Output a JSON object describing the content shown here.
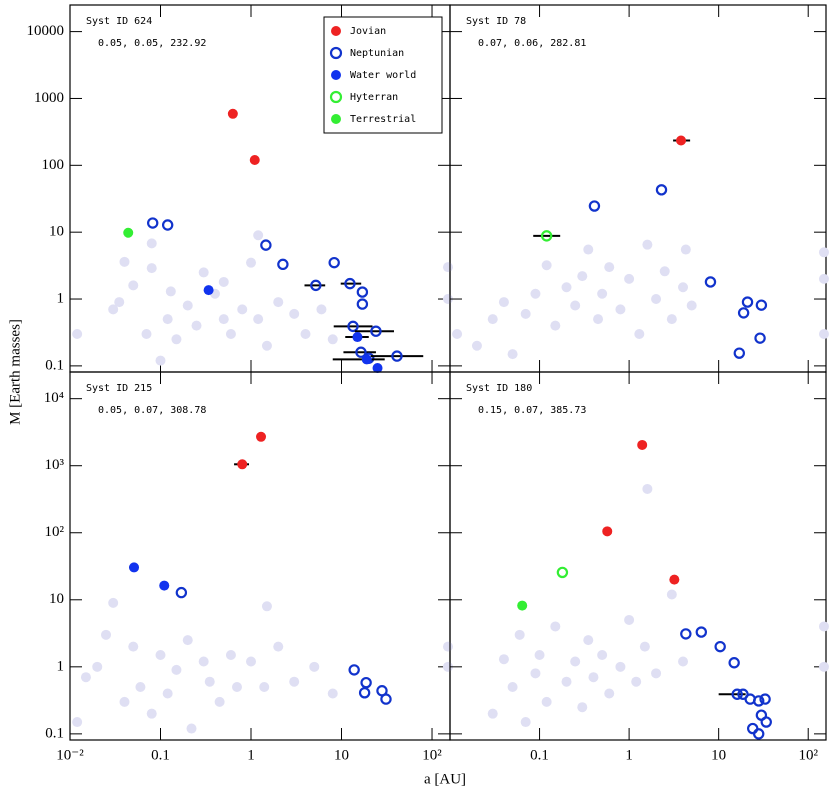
{
  "x_label": "a [AU]",
  "y_label": "M [Earth masses]",
  "chart_data": [
    {
      "type": "scatter",
      "title": "Syst ID 624",
      "subtitle": "0.05, 0.05, 232.92",
      "log_x": true,
      "log_y": true,
      "xlim": [
        0.01,
        158
      ],
      "ylim": [
        0.081,
        25000
      ],
      "xticks": [
        0.01,
        0.1,
        1,
        10,
        100
      ],
      "yticks": [
        0.1,
        1,
        10,
        100,
        1000,
        10000
      ],
      "xtick_labels": false,
      "ytick_labels": true,
      "legend": "upper right",
      "series": [
        {
          "color": "#dfdff3",
          "filled": true,
          "x": [
            0.012,
            0.03,
            0.035,
            0.04,
            0.05,
            0.07,
            0.08,
            0.08,
            0.1,
            0.12,
            0.13,
            0.15,
            0.2,
            0.25,
            0.3,
            0.4,
            0.5,
            0.5,
            0.6,
            0.8,
            1,
            1.2,
            1.2,
            1.5,
            2,
            3,
            4,
            6,
            8,
            150,
            150
          ],
          "values": [
            0.3,
            0.7,
            0.9,
            3.6,
            1.6,
            0.3,
            6.8,
            2.9,
            0.12,
            0.5,
            1.3,
            0.25,
            0.8,
            0.4,
            2.5,
            1.2,
            0.5,
            1.8,
            0.3,
            0.7,
            3.5,
            0.5,
            9,
            0.2,
            0.9,
            0.6,
            0.3,
            0.7,
            0.25,
            3,
            1
          ]
        },
        {
          "name": "Jovian",
          "color": "#ee2222",
          "filled": true,
          "x": [
            0.63,
            1.1
          ],
          "values": [
            590,
            120
          ]
        },
        {
          "name": "Neptunian",
          "color": "#1133cc",
          "filled": false,
          "x": [
            0.082,
            0.12,
            1.46,
            2.25,
            5.2,
            8.3,
            12.4,
            17,
            17,
            13.4,
            24,
            16.4,
            20,
            41
          ],
          "values": [
            13.7,
            12.8,
            6.4,
            3.3,
            1.6,
            3.5,
            1.7,
            1.27,
            0.84,
            0.39,
            0.33,
            0.16,
            0.13,
            0.14
          ],
          "x_low": [
            null,
            null,
            null,
            null,
            3.9,
            null,
            9.8,
            null,
            null,
            8.2,
            14,
            10.5,
            null,
            21
          ],
          "x_high": [
            null,
            null,
            null,
            null,
            6.6,
            null,
            16.5,
            null,
            null,
            22,
            38,
            24,
            null,
            80
          ]
        },
        {
          "name": "Water world",
          "color": "#1133ee",
          "filled": true,
          "x": [
            0.34,
            15,
            19,
            25
          ],
          "values": [
            1.36,
            0.27,
            0.125,
            0.093
          ],
          "x_low": [
            null,
            11,
            8,
            null
          ],
          "x_high": [
            null,
            20,
            30,
            null
          ]
        },
        {
          "name": "Hyterran",
          "color": "#33ee33",
          "filled": false,
          "x": [],
          "values": []
        },
        {
          "name": "Terrestrial",
          "color": "#33ee33",
          "filled": true,
          "x": [
            0.044
          ],
          "values": [
            9.8
          ]
        }
      ]
    },
    {
      "type": "scatter",
      "title": "Syst ID 78",
      "subtitle": "0.07, 0.06, 282.81",
      "log_x": true,
      "log_y": true,
      "xlim": [
        0.01,
        158
      ],
      "ylim": [
        0.081,
        25000
      ],
      "xticks": [
        0.01,
        0.1,
        1,
        10,
        100
      ],
      "yticks": [
        0.1,
        1,
        10,
        100,
        1000,
        10000
      ],
      "xtick_labels": false,
      "ytick_labels": false,
      "series": [
        {
          "color": "#dfdff3",
          "filled": true,
          "x": [
            0.012,
            0.02,
            0.03,
            0.04,
            0.05,
            0.07,
            0.09,
            0.12,
            0.15,
            0.2,
            0.25,
            0.3,
            0.35,
            0.45,
            0.5,
            0.6,
            0.8,
            1,
            1.3,
            1.6,
            2,
            2.5,
            3,
            4,
            4.3,
            5,
            150,
            150,
            150
          ],
          "values": [
            0.3,
            0.2,
            0.5,
            0.9,
            0.15,
            0.6,
            1.2,
            3.2,
            0.4,
            1.5,
            0.8,
            2.2,
            5.5,
            0.5,
            1.2,
            3,
            0.7,
            2,
            0.3,
            6.5,
            1,
            2.6,
            0.5,
            1.5,
            5.5,
            0.8,
            5,
            2,
            0.3
          ]
        },
        {
          "color": "#ee2222",
          "filled": true,
          "x": [
            3.8
          ],
          "values": [
            235
          ],
          "x_low": [
            3.1
          ],
          "x_high": [
            4.8
          ]
        },
        {
          "color": "#1133cc",
          "filled": false,
          "x": [
            0.41,
            2.3,
            8.1,
            21,
            19,
            30,
            17,
            29
          ],
          "values": [
            24.6,
            43,
            1.8,
            0.9,
            0.62,
            0.81,
            0.155,
            0.26
          ]
        },
        {
          "color": "#33ee33",
          "filled": false,
          "x": [
            0.12
          ],
          "values": [
            8.8
          ],
          "x_low": [
            0.085
          ],
          "x_high": [
            0.17
          ]
        }
      ]
    },
    {
      "type": "scatter",
      "title": "Syst ID 215",
      "subtitle": "0.05, 0.07, 308.78",
      "log_x": true,
      "log_y": true,
      "xlim": [
        0.01,
        158
      ],
      "ylim": [
        0.081,
        25000
      ],
      "xticks": [
        {
          "value": 0.01,
          "label": "10⁻²"
        },
        0.1,
        1,
        10,
        {
          "value": 100,
          "label": "10²"
        }
      ],
      "yticks": [
        0.1,
        1,
        10,
        {
          "value": 100,
          "label": "10²"
        },
        {
          "value": 1000,
          "label": "10³"
        },
        {
          "value": 10000,
          "label": "10⁴"
        }
      ],
      "xtick_labels": true,
      "ytick_labels": true,
      "series": [
        {
          "color": "#dfdff3",
          "filled": true,
          "x": [
            0.012,
            0.015,
            0.02,
            0.025,
            0.03,
            0.04,
            0.05,
            0.06,
            0.08,
            0.1,
            0.12,
            0.15,
            0.2,
            0.22,
            0.3,
            0.35,
            0.45,
            0.6,
            0.7,
            1,
            1.4,
            1.5,
            2,
            3,
            5,
            8,
            150,
            150
          ],
          "values": [
            0.15,
            0.7,
            1,
            3,
            9,
            0.3,
            2,
            0.5,
            0.2,
            1.5,
            0.4,
            0.9,
            2.5,
            0.12,
            1.2,
            0.6,
            0.3,
            1.5,
            0.5,
            1.2,
            0.5,
            8,
            2,
            0.6,
            1,
            0.4,
            2,
            1
          ]
        },
        {
          "color": "#ee2222",
          "filled": true,
          "x": [
            1.29,
            0.8
          ],
          "values": [
            2700,
            1050
          ],
          "x_low": [
            null,
            0.65
          ],
          "x_high": [
            null,
            0.95
          ]
        },
        {
          "color": "#1133cc",
          "filled": false,
          "x": [
            0.17,
            13.8,
            18.7,
            18,
            28,
            31
          ],
          "values": [
            12.8,
            0.9,
            0.58,
            0.41,
            0.44,
            0.33
          ]
        },
        {
          "color": "#1133ee",
          "filled": true,
          "x": [
            0.051,
            0.11
          ],
          "values": [
            30.4,
            16.3
          ],
          "x_low": [
            0.045,
            null
          ],
          "x_high": [
            0.057,
            null
          ]
        }
      ]
    },
    {
      "type": "scatter",
      "title": "Syst ID 180",
      "subtitle": "0.15, 0.07, 385.73",
      "log_x": true,
      "log_y": true,
      "xlim": [
        0.01,
        158
      ],
      "ylim": [
        0.081,
        25000
      ],
      "xticks": [
        0.1,
        1,
        10,
        {
          "value": 100,
          "label": "10²"
        }
      ],
      "yticks": [
        0.1,
        1,
        10,
        100,
        1000,
        10000
      ],
      "xtick_labels": true,
      "ytick_labels": false,
      "series": [
        {
          "color": "#dfdff3",
          "filled": true,
          "x": [
            0.03,
            0.04,
            0.05,
            0.06,
            0.07,
            0.09,
            0.1,
            0.12,
            0.15,
            0.2,
            0.25,
            0.3,
            0.35,
            0.4,
            0.5,
            0.6,
            0.8,
            1,
            1.2,
            1.5,
            1.6,
            2,
            3,
            4,
            150,
            150
          ],
          "values": [
            0.2,
            1.3,
            0.5,
            3,
            0.15,
            0.8,
            1.5,
            0.3,
            4,
            0.6,
            1.2,
            0.25,
            2.5,
            0.7,
            1.5,
            0.4,
            1,
            5,
            0.6,
            2,
            450,
            0.8,
            12,
            1.2,
            4,
            1
          ]
        },
        {
          "color": "#ee2222",
          "filled": true,
          "x": [
            1.4,
            0.57,
            3.2
          ],
          "values": [
            2040,
            105,
            20
          ]
        },
        {
          "color": "#1133cc",
          "filled": false,
          "x": [
            4.3,
            6.4,
            10.4,
            14.9,
            16.1,
            18.7,
            22.5,
            28,
            33,
            24,
            30,
            34,
            28
          ],
          "values": [
            3.1,
            3.3,
            2,
            1.15,
            0.39,
            0.39,
            0.33,
            0.31,
            0.33,
            0.12,
            0.19,
            0.15,
            0.1
          ],
          "x_low": [
            null,
            null,
            null,
            null,
            10,
            null,
            null,
            null,
            null,
            null,
            null,
            null,
            null
          ],
          "x_high": [
            null,
            null,
            null,
            null,
            20,
            null,
            null,
            null,
            null,
            null,
            null,
            null,
            null
          ]
        },
        {
          "color": "#33ee33",
          "filled": false,
          "x": [
            0.18
          ],
          "values": [
            25.6
          ]
        },
        {
          "color": "#33ee33",
          "filled": true,
          "x": [
            0.064
          ],
          "values": [
            8.2
          ]
        }
      ]
    }
  ]
}
